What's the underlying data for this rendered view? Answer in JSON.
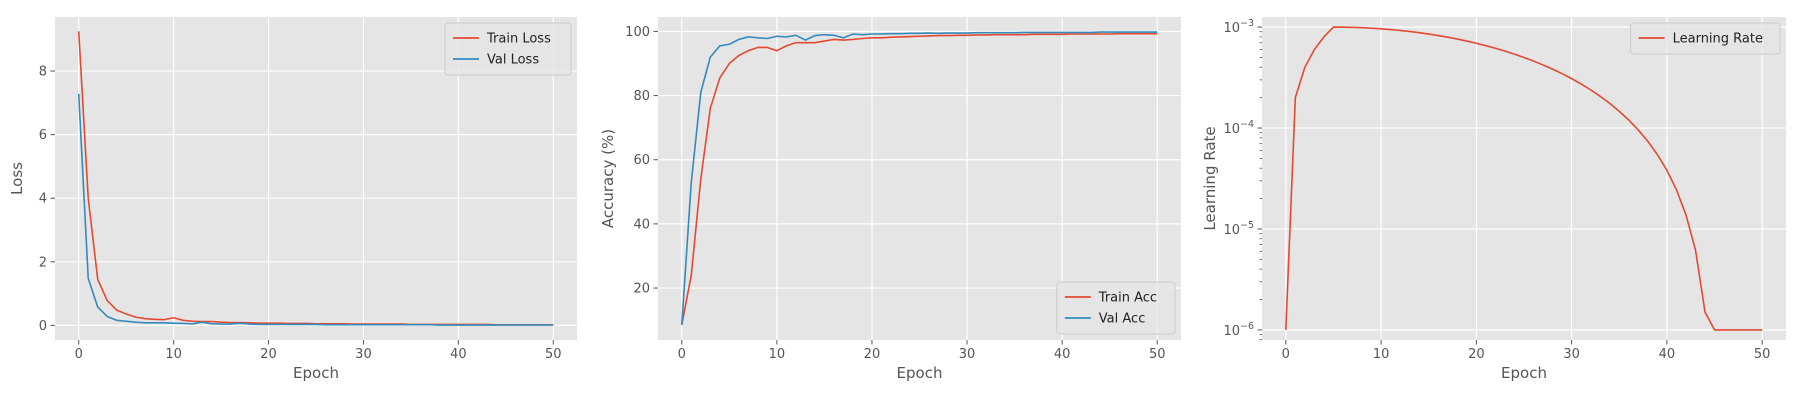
{
  "colors": {
    "train": "#E24A33",
    "val": "#348ABD",
    "panel_bg": "#E5E5E5",
    "grid": "#FFFFFF",
    "tick_text": "#555555",
    "label_text": "#555555",
    "legend_bg": "#E5E5E5",
    "legend_border": "#CCCCCC"
  },
  "chart_data": [
    {
      "type": "line",
      "xlabel": "Epoch",
      "ylabel": "Loss",
      "xlim": [
        -2.5,
        52.5
      ],
      "ylim": [
        -0.46,
        9.7
      ],
      "xticks": [
        0,
        10,
        20,
        30,
        40,
        50
      ],
      "xtick_labels": [
        "0",
        "10",
        "20",
        "30",
        "40",
        "50"
      ],
      "yticks": [
        0,
        2,
        4,
        6,
        8
      ],
      "ytick_labels": [
        "0",
        "2",
        "4",
        "6",
        "8"
      ],
      "grid": true,
      "legend_position": "top-right",
      "x": [
        0,
        1,
        2,
        3,
        4,
        5,
        6,
        7,
        8,
        9,
        10,
        11,
        12,
        13,
        14,
        15,
        16,
        17,
        18,
        19,
        20,
        21,
        22,
        23,
        24,
        25,
        26,
        27,
        28,
        29,
        30,
        31,
        32,
        33,
        34,
        35,
        36,
        37,
        38,
        39,
        40,
        41,
        42,
        43,
        44,
        45,
        46,
        47,
        48,
        49,
        50
      ],
      "series": [
        {
          "name": "Train Loss",
          "color_key": "train",
          "values": [
            9.25,
            4.0,
            1.45,
            0.78,
            0.48,
            0.36,
            0.26,
            0.21,
            0.19,
            0.18,
            0.24,
            0.16,
            0.13,
            0.12,
            0.12,
            0.1,
            0.09,
            0.09,
            0.08,
            0.07,
            0.07,
            0.07,
            0.06,
            0.06,
            0.06,
            0.05,
            0.05,
            0.05,
            0.05,
            0.04,
            0.04,
            0.04,
            0.04,
            0.04,
            0.04,
            0.03,
            0.03,
            0.03,
            0.03,
            0.03,
            0.03,
            0.03,
            0.03,
            0.03,
            0.02,
            0.02,
            0.02,
            0.02,
            0.02,
            0.02,
            0.02
          ]
        },
        {
          "name": "Val Loss",
          "color_key": "val",
          "values": [
            7.28,
            1.48,
            0.58,
            0.28,
            0.16,
            0.13,
            0.1,
            0.08,
            0.08,
            0.08,
            0.07,
            0.06,
            0.05,
            0.1,
            0.05,
            0.04,
            0.04,
            0.07,
            0.04,
            0.03,
            0.03,
            0.03,
            0.03,
            0.03,
            0.03,
            0.03,
            0.02,
            0.02,
            0.02,
            0.02,
            0.02,
            0.02,
            0.02,
            0.02,
            0.02,
            0.02,
            0.02,
            0.02,
            0.01,
            0.01,
            0.01,
            0.01,
            0.01,
            0.01,
            0.01,
            0.01,
            0.01,
            0.01,
            0.01,
            0.01,
            0.01
          ]
        }
      ]
    },
    {
      "type": "line",
      "xlabel": "Epoch",
      "ylabel": "Accuracy (%)",
      "xlim": [
        -2.5,
        52.5
      ],
      "ylim": [
        3.8,
        104.5
      ],
      "xticks": [
        0,
        10,
        20,
        30,
        40,
        50
      ],
      "xtick_labels": [
        "0",
        "10",
        "20",
        "30",
        "40",
        "50"
      ],
      "yticks": [
        20,
        40,
        60,
        80,
        100
      ],
      "ytick_labels": [
        "20",
        "40",
        "60",
        "80",
        "100"
      ],
      "grid": true,
      "legend_position": "bottom-right",
      "x": [
        0,
        1,
        2,
        3,
        4,
        5,
        6,
        7,
        8,
        9,
        10,
        11,
        12,
        13,
        14,
        15,
        16,
        17,
        18,
        19,
        20,
        21,
        22,
        23,
        24,
        25,
        26,
        27,
        28,
        29,
        30,
        31,
        32,
        33,
        34,
        35,
        36,
        37,
        38,
        39,
        40,
        41,
        42,
        43,
        44,
        45,
        46,
        47,
        48,
        49,
        50
      ],
      "series": [
        {
          "name": "Train Acc",
          "color_key": "train",
          "values": [
            8.5,
            24,
            54,
            76,
            85.5,
            90,
            92.5,
            94,
            95,
            95,
            94,
            95.5,
            96.5,
            96.5,
            96.5,
            97,
            97.5,
            97.3,
            97.5,
            97.8,
            98,
            98,
            98.2,
            98.3,
            98.4,
            98.5,
            98.6,
            98.7,
            98.7,
            98.8,
            98.8,
            98.9,
            98.9,
            99,
            99,
            99,
            99,
            99.1,
            99.1,
            99.1,
            99.1,
            99.2,
            99.2,
            99.2,
            99.2,
            99.2,
            99.3,
            99.3,
            99.3,
            99.3,
            99.3
          ]
        },
        {
          "name": "Val Acc",
          "color_key": "val",
          "values": [
            8.5,
            53,
            81,
            92,
            95.5,
            96,
            97.5,
            98.3,
            98,
            97.8,
            98.5,
            98.3,
            98.8,
            97.3,
            98.7,
            99,
            98.8,
            98,
            99.2,
            99,
            99.2,
            99.2,
            99.3,
            99.3,
            99.4,
            99.4,
            99.5,
            99.4,
            99.5,
            99.5,
            99.5,
            99.6,
            99.6,
            99.6,
            99.6,
            99.6,
            99.7,
            99.7,
            99.7,
            99.7,
            99.7,
            99.7,
            99.7,
            99.7,
            99.8,
            99.8,
            99.8,
            99.8,
            99.8,
            99.8,
            99.8
          ]
        }
      ]
    },
    {
      "type": "line",
      "xlabel": "Epoch",
      "ylabel": "Learning Rate",
      "yscale": "log",
      "xlim": [
        -2.5,
        52.5
      ],
      "ylim_log10": [
        -6.1,
        -2.9
      ],
      "xticks": [
        0,
        10,
        20,
        30,
        40,
        50
      ],
      "xtick_labels": [
        "0",
        "10",
        "20",
        "30",
        "40",
        "50"
      ],
      "yticks_log10": [
        -6,
        -5,
        -4,
        -3
      ],
      "ytick_labels": [
        {
          "base": "10",
          "exp": "−6"
        },
        {
          "base": "10",
          "exp": "−5"
        },
        {
          "base": "10",
          "exp": "−4"
        },
        {
          "base": "10",
          "exp": "−3"
        }
      ],
      "grid": true,
      "legend_position": "top-right",
      "x": [
        0,
        1,
        2,
        3,
        4,
        5,
        6,
        7,
        8,
        9,
        10,
        11,
        12,
        13,
        14,
        15,
        16,
        17,
        18,
        19,
        20,
        21,
        22,
        23,
        24,
        25,
        26,
        27,
        28,
        29,
        30,
        31,
        32,
        33,
        34,
        35,
        36,
        37,
        38,
        39,
        40,
        41,
        42,
        43,
        44,
        45,
        46,
        47,
        48,
        49,
        50
      ],
      "series": [
        {
          "name": "Learning Rate",
          "color_key": "train",
          "values": [
            1e-06,
            0.0002008,
            0.0004006,
            0.0006004,
            0.0008002,
            0.001,
            0.0009985,
            0.0009938,
            0.0009862,
            0.0009755,
            0.0009619,
            0.0009455,
            0.0009263,
            0.0009045,
            0.0008802,
            0.0008536,
            0.0008247,
            0.0007939,
            0.0007612,
            0.000727,
            0.0006913,
            0.0006545,
            0.0006167,
            0.0005782,
            0.0005392,
            0.0005,
            0.0004608,
            0.0004218,
            0.0003833,
            0.0003455,
            0.0003087,
            0.000273,
            0.0002388,
            0.0002061,
            0.0001753,
            0.0001464,
            0.0001198,
            9.55e-05,
            7.37e-05,
            5.45e-05,
            3.81e-05,
            2.45e-05,
            1.38e-05,
            6.2e-06,
            1.5e-06,
            1e-06,
            1e-06,
            1e-06,
            1e-06,
            1e-06,
            1e-06
          ]
        }
      ]
    }
  ]
}
